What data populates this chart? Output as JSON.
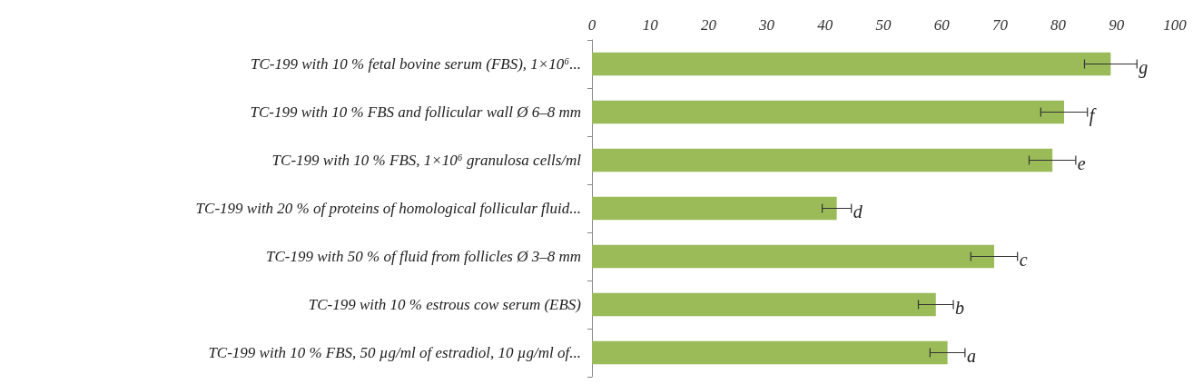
{
  "chart_data": {
    "type": "bar",
    "orientation": "horizontal",
    "categories": [
      "TC-199 with 10 % fetal bovine serum (FBS), 1×10⁶...",
      "TC-199 with 10 % FBS and follicular wall Ø 6–8 mm",
      "TC-199 with 10 % FBS, 1×10⁶ granulosa cells/ml",
      "TC-199 with 20 % of proteins of homological follicular fluid...",
      "TC-199 with 50 % of fluid from follicles Ø 3–8 mm",
      "TC-199 with 10 % estrous cow serum (EBS)",
      "TC-199 with 10 % FBS, 50 µg/ml of estradiol, 10 µg/ml of..."
    ],
    "values": [
      89,
      81,
      79,
      42,
      69,
      59,
      61
    ],
    "errors": [
      4.5,
      4,
      4,
      2.5,
      4,
      3,
      3
    ],
    "color": "#9bbb59",
    "xlim": [
      0,
      100
    ],
    "xticks": [
      0,
      10,
      20,
      30,
      40,
      50,
      60,
      70,
      80,
      90,
      100
    ],
    "grid": false,
    "annotations": [
      {
        "text": "g",
        "x": 93.5,
        "y": "TC-199 with 10 % fetal bovine serum (FBS), 1×10⁶..."
      },
      {
        "text": "f",
        "x": 85,
        "y": "TC-199 with 10 % FBS and follicular wall Ø 6–8 mm"
      },
      {
        "text": "e",
        "x": 83,
        "y": "TC-199 with 10 % FBS, 1×10⁶ granulosa cells/ml"
      },
      {
        "text": "d",
        "x": 44.5,
        "y": "TC-199 with 20 % of proteins of homological follicular fluid..."
      },
      {
        "text": "c",
        "x": 73,
        "y": "TC-199 with 50 % of fluid from follicles Ø 3–8 mm"
      },
      {
        "text": "b",
        "x": 62,
        "y": "TC-199 with 10 % estrous cow serum (EBS)"
      },
      {
        "text": "a",
        "x": 64,
        "y": "TC-199 with 10 % FBS, 50 µg/ml of estradiol, 10 µg/ml of..."
      }
    ]
  }
}
